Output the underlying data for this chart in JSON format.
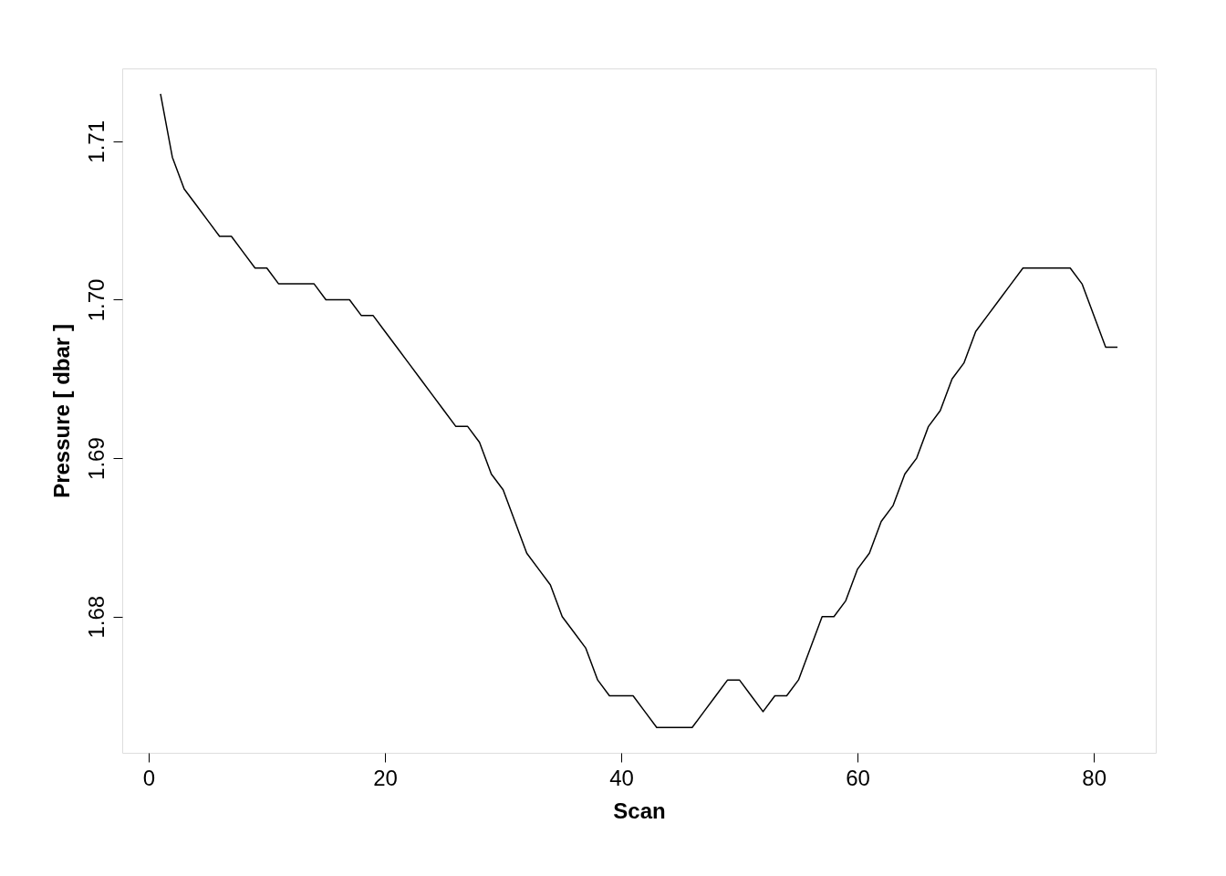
{
  "chart_data": {
    "type": "line",
    "xlabel": "Scan",
    "ylabel": "Pressure [ dbar ]",
    "x": [
      1,
      2,
      3,
      4,
      5,
      6,
      7,
      8,
      9,
      10,
      11,
      12,
      13,
      14,
      15,
      16,
      17,
      18,
      19,
      20,
      21,
      22,
      23,
      24,
      25,
      26,
      27,
      28,
      29,
      30,
      31,
      32,
      33,
      34,
      35,
      36,
      37,
      38,
      39,
      40,
      41,
      42,
      43,
      44,
      45,
      46,
      47,
      48,
      49,
      50,
      51,
      52,
      53,
      54,
      55,
      56,
      57,
      58,
      59,
      60,
      61,
      62,
      63,
      64,
      65,
      66,
      67,
      68,
      69,
      70,
      71,
      72,
      73,
      74,
      75,
      76,
      77,
      78,
      79,
      80,
      81,
      82
    ],
    "series": [
      {
        "color": "#000000",
        "values": [
          1.713,
          1.709,
          1.707,
          1.706,
          1.705,
          1.704,
          1.704,
          1.703,
          1.702,
          1.702,
          1.701,
          1.701,
          1.701,
          1.701,
          1.7,
          1.7,
          1.7,
          1.699,
          1.699,
          1.698,
          1.697,
          1.696,
          1.695,
          1.694,
          1.693,
          1.692,
          1.692,
          1.691,
          1.689,
          1.688,
          1.686,
          1.684,
          1.683,
          1.682,
          1.68,
          1.679,
          1.678,
          1.676,
          1.675,
          1.675,
          1.675,
          1.674,
          1.673,
          1.673,
          1.673,
          1.673,
          1.674,
          1.675,
          1.676,
          1.676,
          1.675,
          1.674,
          1.675,
          1.675,
          1.676,
          1.678,
          1.68,
          1.68,
          1.681,
          1.683,
          1.684,
          1.686,
          1.687,
          1.689,
          1.69,
          1.692,
          1.693,
          1.695,
          1.696,
          1.698,
          1.699,
          1.7,
          1.701,
          1.702,
          1.702,
          1.702,
          1.702,
          1.702,
          1.701,
          1.699,
          1.697,
          1.697
        ]
      }
    ],
    "xlim": [
      -2.24,
      85.24
    ],
    "ylim": [
      1.6714,
      1.7146
    ],
    "xticks": [
      0,
      20,
      40,
      60,
      80
    ],
    "yticks": [
      1.68,
      1.69,
      {
        "value": 1.7,
        "label": "1.70"
      },
      1.71
    ],
    "grid": false,
    "marker": "none",
    "line_style": "solid"
  }
}
